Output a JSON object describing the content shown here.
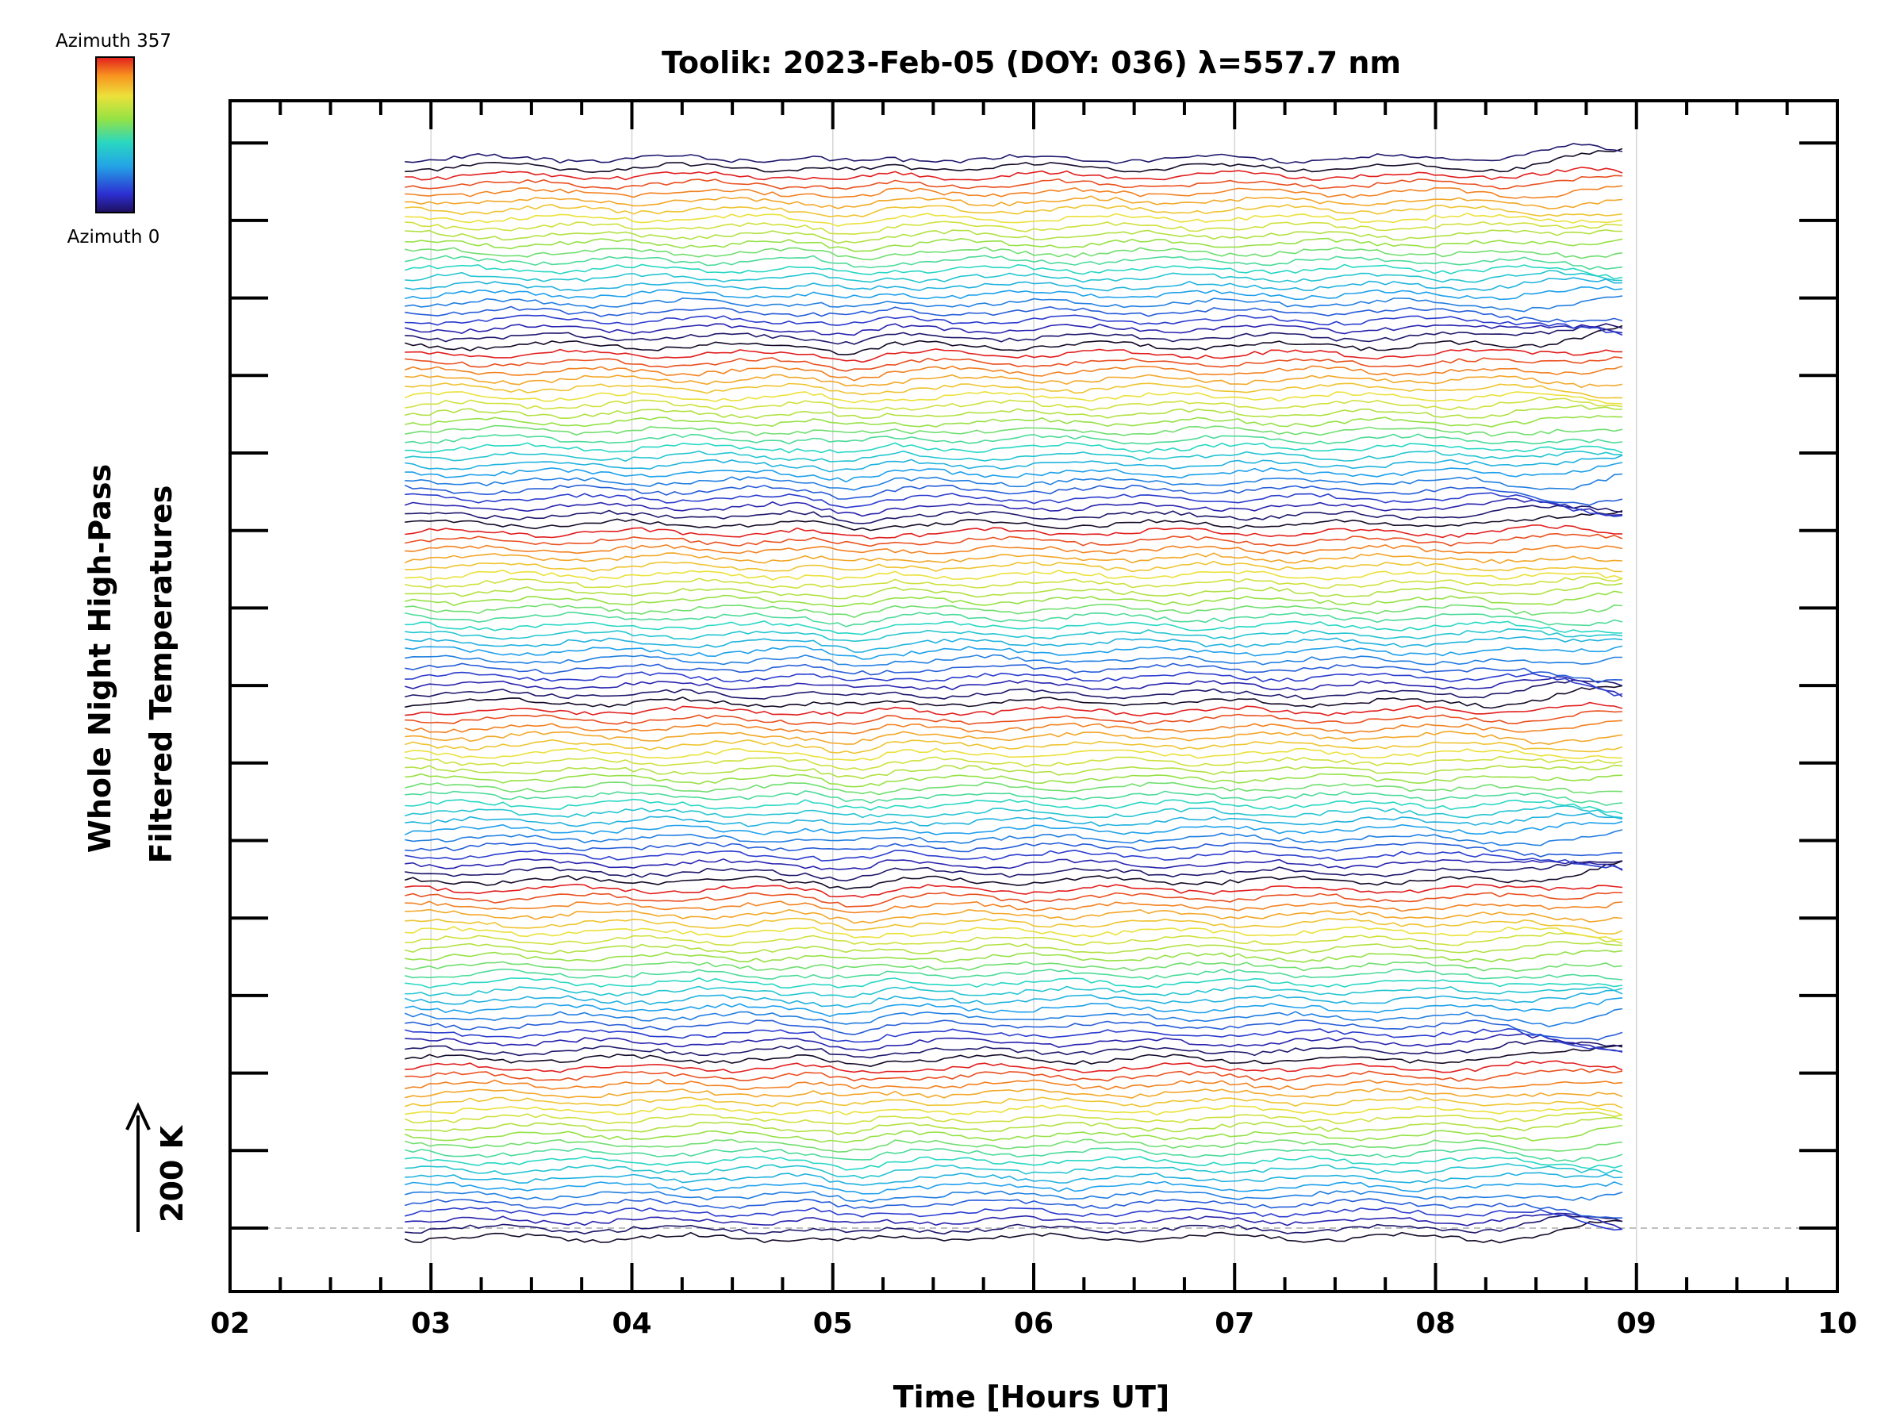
{
  "chart_data": {
    "type": "line",
    "title": "Toolik: 2023-Feb-05 (DOY: 036) λ=557.7 nm",
    "xlabel": "Time [Hours UT]",
    "ylabel": [
      "Whole Night High-Pass",
      "Filtered Temperatures"
    ],
    "scale_label": "200 K",
    "xlim": [
      2,
      10
    ],
    "x_ticks": [
      "02",
      "03",
      "04",
      "05",
      "06",
      "07",
      "08",
      "09",
      "10"
    ],
    "grid": true,
    "colorbar": {
      "quantity": "Azimuth",
      "min_label": "Azimuth 0",
      "max_label": "Azimuth 357",
      "placement": "top-left"
    },
    "time_range": [
      2.87,
      8.93
    ],
    "trace_count": 128,
    "traces_per_group": 21,
    "azimuth_range": [
      0,
      357
    ],
    "series_description": "Stacked high-pass filtered temperature traces, one per azimuth, colored by azimuth with the rainbow colormap; each trace offset vertically above the previous."
  }
}
